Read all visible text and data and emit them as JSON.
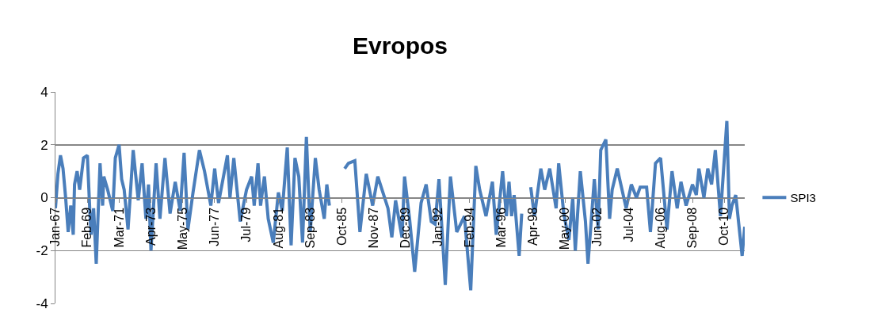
{
  "chart_data": {
    "type": "line",
    "title": "Evropos",
    "x": [
      "1967-01",
      "1967-03",
      "1967-05",
      "1967-07",
      "1967-09",
      "1967-11",
      "1968-01",
      "1968-03",
      "1968-04",
      "1968-06",
      "1968-08",
      "1968-11",
      "1969-02",
      "1969-04",
      "1969-05",
      "1969-07",
      "1969-09",
      "1969-12",
      "1970-02",
      "1970-03",
      "1970-06",
      "1970-10",
      "1970-12",
      "1971-03",
      "1971-05",
      "1971-07",
      "1971-10",
      "1972-02",
      "1972-06",
      "1972-09",
      "1972-12",
      "1973-02",
      "1973-04",
      "1973-08",
      "1973-11",
      "1974-03",
      "1974-07",
      "1974-11",
      "1975-03",
      "1975-06",
      "1975-09",
      "1976-01",
      "1976-06",
      "1976-10",
      "1977-03",
      "1977-06",
      "1977-09",
      "1978-04",
      "1978-06",
      "1978-09",
      "1979-02",
      "1979-07",
      "1979-11",
      "1980-01",
      "1980-04",
      "1980-06",
      "1980-09",
      "1980-12",
      "1981-04",
      "1981-08",
      "1981-11",
      "1982-03",
      "1982-06",
      "1982-09",
      "1982-12",
      "1983-03",
      "1983-06",
      "1983-09",
      "1984-01",
      "1984-04",
      "1984-08",
      "1984-10",
      "1984-12",
      "1985-01",
      "1985-12",
      "1986-03",
      "1986-08",
      "1986-12",
      "1987-05",
      "1987-10",
      "1988-02",
      "1988-10",
      "1989-01",
      "1989-04",
      "1989-09",
      "1989-11",
      "1990-03",
      "1990-07",
      "1990-12",
      "1991-04",
      "1991-08",
      "1991-11",
      "1992-02",
      "1992-07",
      "1992-11",
      "1993-04",
      "1993-10",
      "1994-03",
      "1994-07",
      "1994-10",
      "1995-03",
      "1995-08",
      "1995-11",
      "1996-04",
      "1996-07",
      "1996-09",
      "1996-11",
      "1997-01",
      "1997-05",
      "1997-07",
      "1997-08",
      "1998-02",
      "1998-05",
      "1998-10",
      "1999-01",
      "1999-05",
      "1999-10",
      "1999-12",
      "2000-04",
      "2000-08",
      "2000-11",
      "2001-01",
      "2001-05",
      "2001-09",
      "2001-11",
      "2002-04",
      "2002-07",
      "2002-09",
      "2003-01",
      "2003-04",
      "2003-06",
      "2003-10",
      "2004-05",
      "2004-09",
      "2005-01",
      "2005-04",
      "2005-09",
      "2005-12",
      "2006-04",
      "2006-08",
      "2007-01",
      "2007-05",
      "2007-09",
      "2007-12",
      "2008-04",
      "2008-09",
      "2008-12",
      "2009-02",
      "2009-06",
      "2009-09",
      "2009-12",
      "2010-03",
      "2010-07",
      "2010-12",
      "2011-02",
      "2011-04",
      "2011-07",
      "2011-12",
      "2012-02"
    ],
    "series": [
      {
        "name": "SPI3",
        "color": "#4a7ebb",
        "values": [
          -0.4,
          0.9,
          1.6,
          1.1,
          0,
          -1.3,
          -0.3,
          -1.4,
          0.5,
          1.0,
          0.3,
          1.5,
          1.6,
          -0.5,
          -1.4,
          -0.4,
          -2.5,
          1.3,
          -0.3,
          0.8,
          0.3,
          -0.5,
          1.5,
          2.0,
          0.7,
          0.3,
          -1.2,
          1.8,
          -0.1,
          1.3,
          -0.8,
          0.5,
          -2.0,
          1.3,
          -0.8,
          1.5,
          -0.6,
          0.6,
          -0.5,
          1.7,
          -1.2,
          0.2,
          1.8,
          1.0,
          -0.3,
          1.1,
          -0.2,
          1.6,
          0,
          1.5,
          -0.9,
          0.3,
          0.8,
          -0.3,
          1.3,
          -0.3,
          0.8,
          -0.8,
          -1.7,
          0.2,
          -0.5,
          1.9,
          -1.8,
          1.5,
          0.8,
          -1.7,
          2.3,
          -1.3,
          1.5,
          0.3,
          -0.8,
          0.5,
          -0.3,
          null,
          1.1,
          1.3,
          1.4,
          -1.3,
          0.9,
          -0.3,
          0.8,
          -0.4,
          -1.5,
          -0.1,
          -1.5,
          0.8,
          -0.8,
          -2.8,
          -0.2,
          0.5,
          -0.9,
          -1.0,
          0.7,
          -3.3,
          0.8,
          -1.3,
          -0.7,
          -3.5,
          1.2,
          0.3,
          -0.7,
          0.6,
          -1.4,
          1.0,
          -0.7,
          0.6,
          -0.7,
          0.1,
          -2.2,
          -0.6,
          null,
          0.4,
          -0.7,
          1.1,
          0.3,
          1.1,
          -0.4,
          1.3,
          -0.6,
          -1.6,
          0,
          -2.0,
          1.0,
          -0.9,
          -2.5,
          0.7,
          -1.2,
          1.8,
          2.2,
          -0.8,
          0.3,
          1.1,
          -0.4,
          0.5,
          0,
          0.4,
          0.4,
          -1.3,
          1.3,
          1.5,
          -1.2,
          1.0,
          -0.4,
          0.6,
          -0.3,
          0.5,
          0.1,
          1.1,
          0,
          1.1,
          0.5,
          1.8,
          -0.7,
          2.9,
          -0.8,
          -0.3,
          0.1,
          -2.2,
          -1.1
        ]
      }
    ],
    "xlim": [
      "1967-01",
      "2012-02"
    ],
    "xticks": [
      {
        "value": "1967-01",
        "label": "Jan-67"
      },
      {
        "value": "1969-02",
        "label": "Feb-69"
      },
      {
        "value": "1971-03",
        "label": "Mar-71"
      },
      {
        "value": "1973-04",
        "label": "Apr-73"
      },
      {
        "value": "1975-05",
        "label": "May-75"
      },
      {
        "value": "1977-06",
        "label": "Jun-77"
      },
      {
        "value": "1979-07",
        "label": "Jul-79"
      },
      {
        "value": "1981-08",
        "label": "Aug-81"
      },
      {
        "value": "1983-09",
        "label": "Sep-83"
      },
      {
        "value": "1985-10",
        "label": "Oct-85"
      },
      {
        "value": "1987-11",
        "label": "Nov-87"
      },
      {
        "value": "1989-12",
        "label": "Dec-89"
      },
      {
        "value": "1992-01",
        "label": "Jan-92"
      },
      {
        "value": "1994-02",
        "label": "Feb-94"
      },
      {
        "value": "1996-03",
        "label": "Mar-96"
      },
      {
        "value": "1998-04",
        "label": "Apr-98"
      },
      {
        "value": "2000-05",
        "label": "May-00"
      },
      {
        "value": "2002-06",
        "label": "Jun-02"
      },
      {
        "value": "2004-07",
        "label": "Jul-04"
      },
      {
        "value": "2006-08",
        "label": "Aug-06"
      },
      {
        "value": "2008-09",
        "label": "Sep-08"
      },
      {
        "value": "2010-10",
        "label": "Oct-10"
      }
    ],
    "ylim": [
      -4,
      4
    ],
    "yticks": [
      -4,
      -2,
      0,
      2,
      4
    ],
    "grid": "y",
    "legend": "right",
    "marker": "none",
    "line_style": "solid"
  }
}
